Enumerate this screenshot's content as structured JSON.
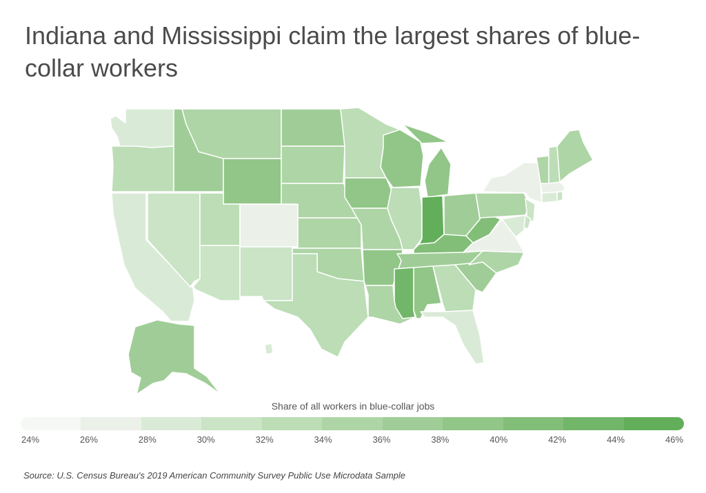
{
  "title": "Indiana and Mississippi claim the largest shares of blue-collar workers",
  "legend": {
    "title": "Share of all workers in blue-collar jobs",
    "ticks": [
      "24%",
      "26%",
      "28%",
      "30%",
      "32%",
      "34%",
      "36%",
      "38%",
      "40%",
      "42%",
      "44%",
      "46%"
    ],
    "colors": [
      "#f5f8f4",
      "#ebf1e9",
      "#d9ebd6",
      "#cae4c5",
      "#bcddb6",
      "#aed5a6",
      "#a0cd97",
      "#92c688",
      "#82be78",
      "#72b669",
      "#62ae5a"
    ]
  },
  "source": "Source:  U.S. Census Bureau's 2019 American Community Survey Public Use Microdata Sample",
  "states": [
    {
      "name": "Washington",
      "share": 29
    },
    {
      "name": "Oregon",
      "share": 33
    },
    {
      "name": "California",
      "share": 29
    },
    {
      "name": "Nevada",
      "share": 31
    },
    {
      "name": "Idaho",
      "share": 37
    },
    {
      "name": "Montana",
      "share": 35
    },
    {
      "name": "Wyoming",
      "share": 39
    },
    {
      "name": "Utah",
      "share": 33
    },
    {
      "name": "Arizona",
      "share": 30
    },
    {
      "name": "Colorado",
      "share": 27
    },
    {
      "name": "New Mexico",
      "share": 31
    },
    {
      "name": "North Dakota",
      "share": 37
    },
    {
      "name": "South Dakota",
      "share": 34
    },
    {
      "name": "Nebraska",
      "share": 34
    },
    {
      "name": "Kansas",
      "share": 35
    },
    {
      "name": "Oklahoma",
      "share": 35
    },
    {
      "name": "Texas",
      "share": 33
    },
    {
      "name": "Minnesota",
      "share": 32
    },
    {
      "name": "Iowa",
      "share": 38
    },
    {
      "name": "Missouri",
      "share": 34
    },
    {
      "name": "Arkansas",
      "share": 39
    },
    {
      "name": "Louisiana",
      "share": 35
    },
    {
      "name": "Wisconsin",
      "share": 39
    },
    {
      "name": "Illinois",
      "share": 32
    },
    {
      "name": "Michigan",
      "share": 38
    },
    {
      "name": "Indiana",
      "share": 44
    },
    {
      "name": "Ohio",
      "share": 37
    },
    {
      "name": "Kentucky",
      "share": 41
    },
    {
      "name": "Tennessee",
      "share": 37
    },
    {
      "name": "Mississippi",
      "share": 43
    },
    {
      "name": "Alabama",
      "share": 38
    },
    {
      "name": "Georgia",
      "share": 33
    },
    {
      "name": "Florida",
      "share": 29
    },
    {
      "name": "South Carolina",
      "share": 37
    },
    {
      "name": "North Carolina",
      "share": 35
    },
    {
      "name": "Virginia",
      "share": 27
    },
    {
      "name": "West Virginia",
      "share": 41
    },
    {
      "name": "Pennsylvania",
      "share": 34
    },
    {
      "name": "New York",
      "share": 26
    },
    {
      "name": "New Jersey",
      "share": 30
    },
    {
      "name": "Maryland",
      "share": 28
    },
    {
      "name": "Delaware",
      "share": 30
    },
    {
      "name": "Connecticut",
      "share": 29
    },
    {
      "name": "Rhode Island",
      "share": 31
    },
    {
      "name": "Massachusetts",
      "share": 26
    },
    {
      "name": "Vermont",
      "share": 34
    },
    {
      "name": "New Hampshire",
      "share": 32
    },
    {
      "name": "Maine",
      "share": 35
    },
    {
      "name": "Alaska",
      "share": 37
    },
    {
      "name": "Hawaii",
      "share": 29
    }
  ]
}
